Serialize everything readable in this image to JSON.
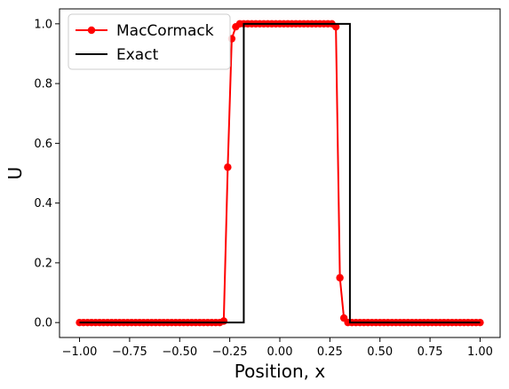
{
  "chart_data": {
    "type": "line",
    "xlabel": "Position, x",
    "ylabel": "U",
    "xlim": [
      -1.1,
      1.1
    ],
    "ylim": [
      -0.05,
      1.05
    ],
    "xticks": [
      {
        "value": -1,
        "label": "−1.00"
      },
      {
        "value": -0.75,
        "label": "−0.75"
      },
      {
        "value": -0.5,
        "label": "−0.50"
      },
      {
        "value": -0.25,
        "label": "−0.25"
      },
      {
        "value": 0,
        "label": "0.00"
      },
      {
        "value": 0.25,
        "label": "0.25"
      },
      {
        "value": 0.5,
        "label": "0.50"
      },
      {
        "value": 0.75,
        "label": "0.75"
      },
      {
        "value": 1,
        "label": "1.00"
      }
    ],
    "yticks": [
      {
        "value": 0,
        "label": "0.0"
      },
      {
        "value": 0.2,
        "label": "0.2"
      },
      {
        "value": 0.4,
        "label": "0.4"
      },
      {
        "value": 0.6,
        "label": "0.6"
      },
      {
        "value": 0.8,
        "label": "0.8"
      },
      {
        "value": 1,
        "label": "1.0"
      }
    ],
    "grid": false,
    "legend": "upper-left",
    "series": [
      {
        "name": "MacCormack",
        "color": "#ff0000",
        "marker": "circle",
        "x": [
          -1,
          -0.98,
          -0.96,
          -0.94,
          -0.92,
          -0.9,
          -0.88,
          -0.86,
          -0.84,
          -0.82,
          -0.8,
          -0.78,
          -0.76,
          -0.74,
          -0.72,
          -0.7,
          -0.68,
          -0.66,
          -0.64,
          -0.62,
          -0.6,
          -0.58,
          -0.56,
          -0.54,
          -0.52,
          -0.5,
          -0.48,
          -0.46,
          -0.44,
          -0.42,
          -0.4,
          -0.38,
          -0.36,
          -0.34,
          -0.32,
          -0.3,
          -0.28,
          -0.26,
          -0.24,
          -0.22,
          -0.2,
          -0.18,
          -0.16,
          -0.14,
          -0.12,
          -0.1,
          -0.08,
          -0.06,
          -0.04,
          -0.02,
          0,
          0.02,
          0.04,
          0.06,
          0.08,
          0.1,
          0.12,
          0.14,
          0.16,
          0.18,
          0.2,
          0.22,
          0.24,
          0.26,
          0.28,
          0.3,
          0.32,
          0.34,
          0.36,
          0.38,
          0.4,
          0.42,
          0.44,
          0.46,
          0.48,
          0.5,
          0.52,
          0.54,
          0.56,
          0.58,
          0.6,
          0.62,
          0.64,
          0.66,
          0.68,
          0.7,
          0.72,
          0.74,
          0.76,
          0.78,
          0.8,
          0.82,
          0.84,
          0.86,
          0.88,
          0.9,
          0.92,
          0.94,
          0.96,
          0.98,
          1
        ],
        "values": [
          0,
          0,
          0,
          0,
          0,
          0,
          0,
          0,
          0,
          0,
          0,
          0,
          0,
          0,
          0,
          0,
          0,
          0,
          0,
          0,
          0,
          0,
          0,
          0,
          0,
          0,
          0,
          0,
          0,
          0,
          0,
          0,
          0,
          0,
          0,
          0,
          0.005,
          0.52,
          0.95,
          0.99,
          1,
          1,
          1,
          1,
          1,
          1,
          1,
          1,
          1,
          1,
          1,
          1,
          1,
          1,
          1,
          1,
          1,
          1,
          1,
          1,
          1,
          1,
          1,
          1,
          0.99,
          0.15,
          0.015,
          0,
          0,
          0,
          0,
          0,
          0,
          0,
          0,
          0,
          0,
          0,
          0,
          0,
          0,
          0,
          0,
          0,
          0,
          0,
          0,
          0,
          0,
          0,
          0,
          0,
          0,
          0,
          0,
          0,
          0,
          0,
          0,
          0,
          0
        ]
      },
      {
        "name": "Exact",
        "color": "#000000",
        "x": [
          -1,
          -0.18,
          -0.18,
          0.35,
          0.35,
          1
        ],
        "values": [
          0,
          0,
          1,
          1,
          0,
          0
        ]
      }
    ]
  }
}
